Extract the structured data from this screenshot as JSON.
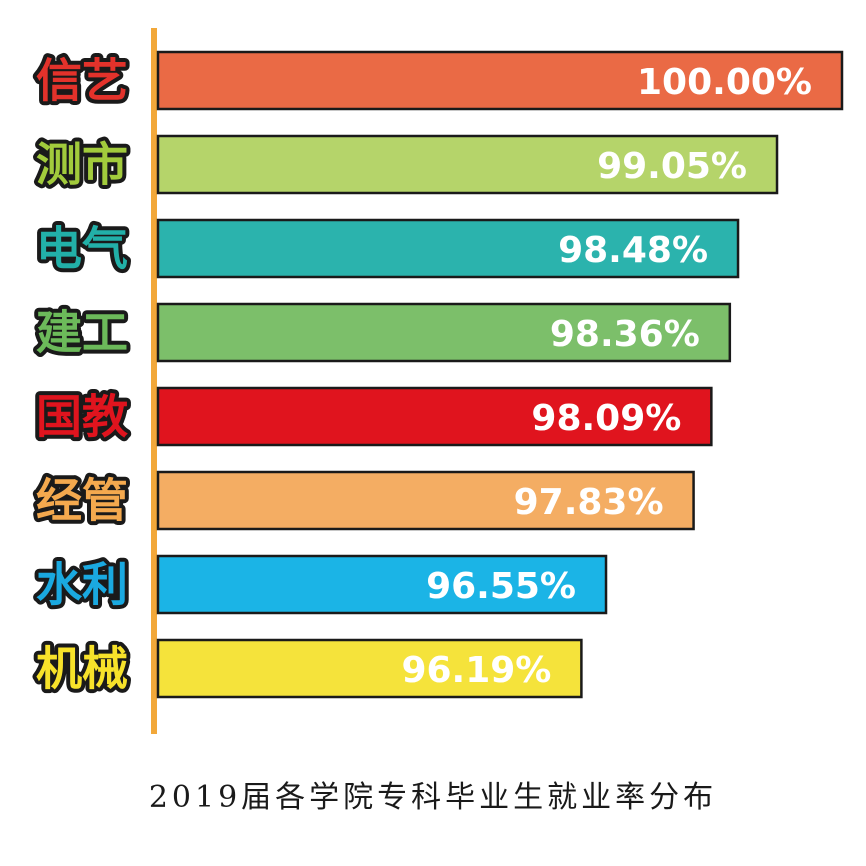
{
  "chart_data": {
    "type": "bar",
    "orientation": "horizontal",
    "title": "2019届各学院专科毕业生就业率分布",
    "categories": [
      "信艺",
      "测市",
      "电气",
      "建工",
      "国教",
      "经管",
      "水利",
      "机械"
    ],
    "values": [
      100.0,
      99.05,
      98.48,
      98.36,
      98.09,
      97.83,
      96.55,
      96.19
    ],
    "value_labels": [
      "100.00%",
      "99.05%",
      "98.48%",
      "98.36%",
      "98.09%",
      "97.83%",
      "96.55%",
      "96.19%"
    ],
    "bar_colors": [
      "#ea6a45",
      "#b5d46a",
      "#2bb3ad",
      "#7cbf6a",
      "#e0141e",
      "#f4ad63",
      "#1bb4e6",
      "#f5e33b"
    ],
    "label_colors": [
      "#e3322b",
      "#a2cb3c",
      "#22b0a8",
      "#6cba5a",
      "#e0141e",
      "#f4a94e",
      "#1aa9e0",
      "#f7e22a"
    ],
    "axis_color": "#f2a83a",
    "xlabel": "",
    "ylabel": "",
    "xlim": [
      90,
      100
    ],
    "grid": false,
    "legend": "none"
  }
}
